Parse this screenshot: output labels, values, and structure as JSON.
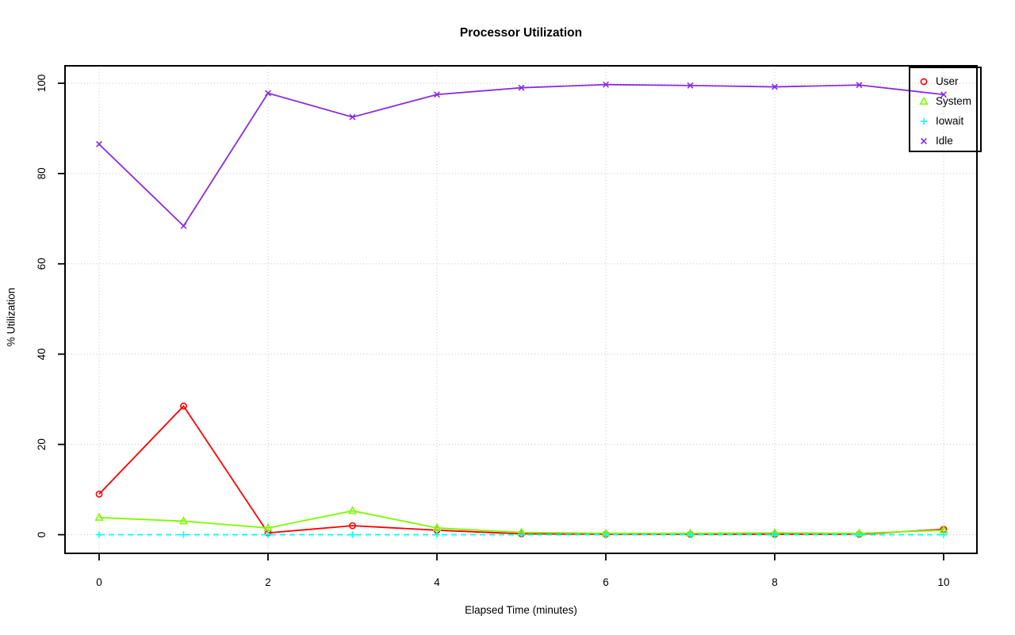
{
  "chart_data": {
    "type": "line",
    "title": "Processor Utilization",
    "xlabel": "Elapsed Time (minutes)",
    "ylabel": "% Utilization",
    "x": [
      0,
      1,
      2,
      3,
      4,
      5,
      6,
      7,
      8,
      9,
      10
    ],
    "x_ticks": [
      0,
      2,
      4,
      6,
      8,
      10
    ],
    "y_ticks": [
      0,
      20,
      40,
      60,
      80,
      100
    ],
    "xlim": [
      0,
      10
    ],
    "ylim": [
      0,
      100
    ],
    "grid": "dotted",
    "grid_color": "#c6c6c6",
    "legend_position": "top-right",
    "series": [
      {
        "name": "User",
        "color": "#ff0000",
        "marker": "circle-open",
        "line": "solid",
        "values": [
          9.0,
          28.5,
          0.4,
          2.0,
          1.0,
          0.2,
          0.1,
          0.1,
          0.1,
          0.1,
          1.2
        ]
      },
      {
        "name": "System",
        "color": "#7cfc00",
        "marker": "triangle-open",
        "line": "solid",
        "values": [
          3.8,
          3.0,
          1.5,
          5.3,
          1.5,
          0.5,
          0.3,
          0.3,
          0.4,
          0.3,
          1.0
        ]
      },
      {
        "name": "Iowait",
        "color": "#00ffff",
        "marker": "plus",
        "line": "dashed",
        "values": [
          0,
          0,
          0,
          0,
          0,
          0,
          0,
          0,
          0,
          0,
          0
        ]
      },
      {
        "name": "Idle",
        "color": "#8a2be2",
        "marker": "x",
        "line": "solid",
        "values": [
          86.5,
          68.4,
          97.8,
          92.5,
          97.5,
          99.0,
          99.7,
          99.5,
          99.2,
          99.6,
          97.5
        ]
      }
    ]
  }
}
